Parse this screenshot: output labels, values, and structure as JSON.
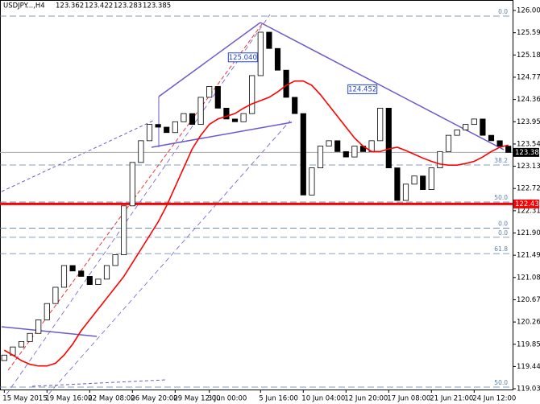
{
  "chart_data": {
    "type": "candlestick",
    "title": "USDJPY...,H4",
    "ohlc": [
      123.362,
      123.422,
      123.283,
      123.385
    ],
    "ylim": [
      119.016,
      126.193
    ],
    "yticks": [
      {
        "value": 126.0,
        "label": "126.000"
      },
      {
        "value": 125.59,
        "label": "125.590"
      },
      {
        "value": 125.18,
        "label": "125.180"
      },
      {
        "value": 124.77,
        "label": "124.770"
      },
      {
        "value": 124.36,
        "label": "124.360"
      },
      {
        "value": 123.95,
        "label": "123.950"
      },
      {
        "value": 123.54,
        "label": "123.540"
      },
      {
        "value": 123.13,
        "label": "123.130"
      },
      {
        "value": 122.72,
        "label": "122.720"
      },
      {
        "value": 122.31,
        "label": "122.310"
      },
      {
        "value": 121.9,
        "label": "121.900"
      },
      {
        "value": 121.49,
        "label": "121.490"
      },
      {
        "value": 121.08,
        "label": "121.080"
      },
      {
        "value": 120.67,
        "label": "120.670"
      },
      {
        "value": 120.26,
        "label": "120.260"
      },
      {
        "value": 119.85,
        "label": "119.850"
      },
      {
        "value": 119.44,
        "label": "119.440"
      },
      {
        "value": 119.03,
        "label": "119.030"
      }
    ],
    "categories": [
      "15 May 2015",
      null,
      null,
      null,
      null,
      "19 May 16:00",
      null,
      null,
      null,
      null,
      "22 May 08:00",
      null,
      null,
      null,
      null,
      "26 May 20:00",
      null,
      null,
      null,
      null,
      "29 May 12:00",
      null,
      null,
      null,
      "3 Jun 00:00",
      null,
      null,
      null,
      null,
      null,
      "5 Jun 16:00",
      null,
      null,
      null,
      null,
      "10 Jun 04:00",
      null,
      null,
      null,
      null,
      "12 Jun 20:00",
      null,
      null,
      null,
      null,
      "17 Jun 08:00",
      null,
      null,
      null,
      null,
      "21 Jun 21:00",
      null,
      null,
      null,
      null,
      "24 Jun 12:00",
      null,
      null,
      null,
      null
    ],
    "open": [
      119.55,
      119.65,
      119.8,
      119.9,
      120.05,
      120.3,
      120.6,
      120.9,
      121.3,
      121.2,
      121.1,
      120.95,
      121.05,
      121.3,
      121.5,
      122.4,
      123.2,
      123.6,
      123.9,
      123.85,
      123.75,
      123.95,
      124.1,
      123.9,
      124.4,
      124.6,
      124.2,
      124.0,
      123.95,
      124.1,
      124.8,
      125.6,
      125.3,
      124.9,
      124.4,
      124.1,
      122.6,
      123.1,
      123.5,
      123.6,
      123.4,
      123.3,
      123.5,
      123.4,
      123.6,
      124.2,
      123.1,
      122.5,
      122.8,
      122.95,
      122.7,
      123.1,
      123.4,
      123.7,
      123.8,
      123.9,
      124.0,
      123.7,
      123.6,
      123.5
    ],
    "close": [
      119.65,
      119.8,
      119.9,
      120.05,
      120.3,
      120.6,
      120.9,
      121.3,
      121.2,
      121.1,
      120.95,
      121.05,
      121.3,
      121.5,
      122.4,
      123.2,
      123.6,
      123.9,
      123.85,
      123.75,
      123.95,
      124.1,
      123.9,
      124.4,
      124.6,
      124.2,
      124.0,
      123.95,
      124.1,
      124.8,
      125.6,
      125.3,
      124.9,
      124.4,
      124.1,
      122.6,
      123.1,
      123.5,
      123.6,
      123.4,
      123.3,
      123.5,
      123.4,
      123.6,
      124.2,
      123.1,
      122.5,
      122.8,
      122.95,
      122.7,
      123.1,
      123.4,
      123.7,
      123.8,
      123.9,
      124.0,
      123.7,
      123.6,
      123.5,
      123.385
    ],
    "series": [
      {
        "color": "#ff0000",
        "values": [
          119.74,
          119.65,
          119.55,
          119.48,
          119.45,
          119.45,
          119.5,
          119.65,
          119.85,
          120.1,
          120.3,
          120.5,
          120.7,
          120.9,
          121.1,
          121.35,
          121.6,
          121.85,
          122.1,
          122.4,
          122.75,
          123.1,
          123.45,
          123.7,
          123.9,
          124.0,
          124.05,
          124.1,
          124.2,
          124.28,
          124.34,
          124.4,
          124.5,
          124.62,
          124.7,
          124.7,
          124.62,
          124.45,
          124.25,
          124.05,
          123.85,
          123.65,
          123.5,
          123.4,
          123.4,
          123.45,
          123.48,
          123.42,
          123.35,
          123.28,
          123.22,
          123.17,
          123.15,
          123.15,
          123.18,
          123.22,
          123.3,
          123.4,
          123.48,
          123.52
        ]
      }
    ],
    "fib_levels": [
      {
        "value": 125.896,
        "label": "0.0"
      },
      {
        "value": 123.153,
        "label": "38.2"
      },
      {
        "value": 122.47,
        "label": "50.0"
      },
      {
        "value": 121.99,
        "label": "0.0"
      },
      {
        "value": 121.82,
        "label": "0.0"
      },
      {
        "value": 121.52,
        "label": "61.8"
      },
      {
        "value": 119.06,
        "label": "50.0"
      }
    ],
    "price_lines": [
      {
        "value": 123.385,
        "color": "#000000"
      },
      {
        "value": 122.435,
        "color": "#ff0000"
      }
    ],
    "annotations": [
      {
        "index": 30,
        "value": 125.04,
        "label": "125.040"
      },
      {
        "index": 44,
        "value": 124.452,
        "label": "124.452"
      }
    ]
  }
}
